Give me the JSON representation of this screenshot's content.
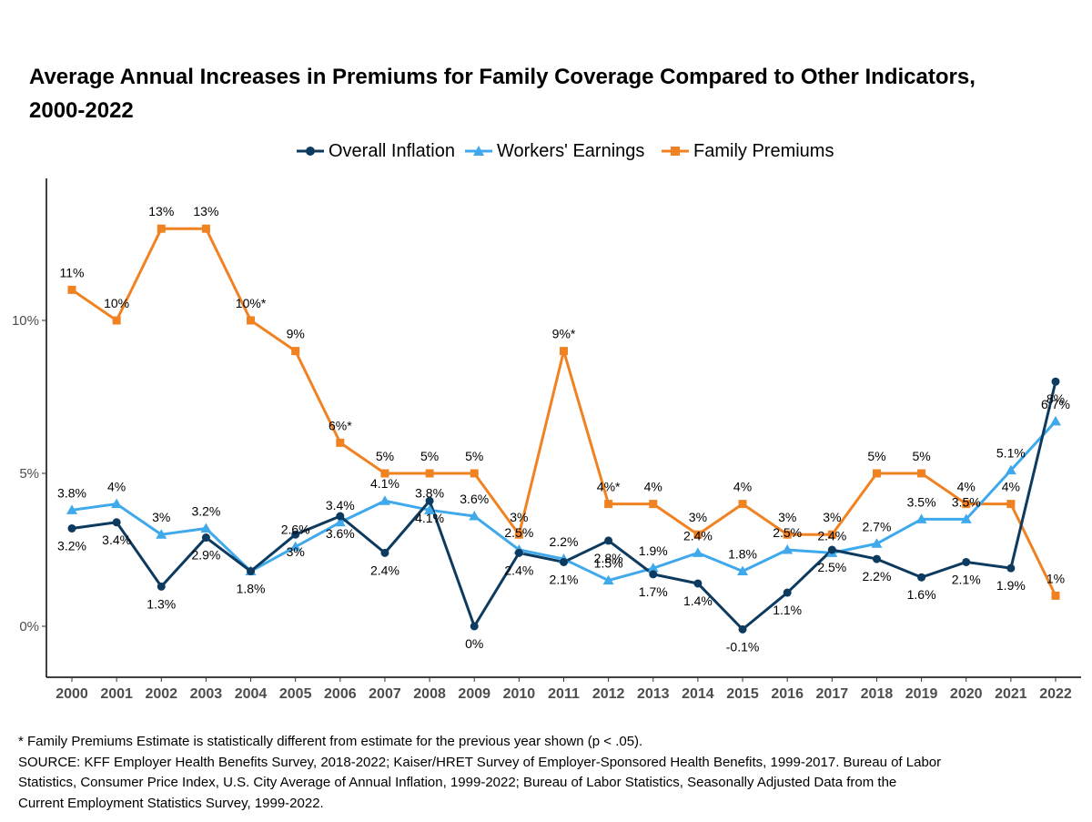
{
  "title_line1": "Average Annual Increases in Premiums for Family Coverage Compared to Other Indicators,",
  "title_line2": "2000-2022",
  "legend": [
    {
      "name": "Overall Inflation",
      "color": "#0d3a5f",
      "marker": "circle"
    },
    {
      "name": "Workers' Earnings",
      "color": "#3fa9ec",
      "marker": "triangle"
    },
    {
      "name": "Family Premiums",
      "color": "#f08222",
      "marker": "square"
    }
  ],
  "chart_data": {
    "type": "line",
    "title": "Average Annual Increases in Premiums for Family Coverage Compared to Other Indicators, 2000-2022",
    "x": [
      "2000",
      "2001",
      "2002",
      "2003",
      "2004",
      "2005",
      "2006",
      "2007",
      "2008",
      "2009",
      "2010",
      "2011",
      "2012",
      "2013",
      "2014",
      "2015",
      "2016",
      "2017",
      "2018",
      "2019",
      "2020",
      "2021",
      "2022"
    ],
    "ylim": [
      -1.7,
      13.9
    ],
    "yticks": [
      0,
      5,
      10
    ],
    "ytick_labels": [
      "0%",
      "5%",
      "10%"
    ],
    "grid": false,
    "legend_position": "top",
    "series": [
      {
        "name": "Overall Inflation",
        "color": "#0d3a5f",
        "marker": "circle",
        "label_position": "below",
        "values": [
          3.2,
          3.4,
          1.3,
          2.9,
          1.8,
          3.0,
          3.6,
          2.4,
          4.1,
          0,
          2.4,
          2.1,
          2.8,
          1.7,
          1.4,
          -0.1,
          1.1,
          2.5,
          2.2,
          1.6,
          2.1,
          1.9,
          8.0
        ],
        "labels": [
          "3.2%",
          "3.4%",
          "1.3%",
          "2.9%",
          "1.8%",
          "3%",
          "3.6%",
          "2.4%",
          "4.1%",
          "0%",
          "2.4%",
          "2.1%",
          "2.8%",
          "1.7%",
          "1.4%",
          "-0.1%",
          "1.1%",
          "2.5%",
          "2.2%",
          "1.6%",
          "2.1%",
          "1.9%",
          "8%"
        ]
      },
      {
        "name": "Workers' Earnings",
        "color": "#3fa9ec",
        "marker": "triangle",
        "label_position": "above",
        "values": [
          3.8,
          4.0,
          3.0,
          3.2,
          1.8,
          2.6,
          3.4,
          4.1,
          3.8,
          3.6,
          2.5,
          2.2,
          1.5,
          1.9,
          2.4,
          1.8,
          2.5,
          2.4,
          2.7,
          3.5,
          3.5,
          5.1,
          6.7
        ],
        "labels": [
          "3.8%",
          "4%",
          "3%",
          "3.2%",
          "",
          "2.6%",
          "3.4%",
          "4.1%",
          "3.8%",
          "3.6%",
          "2.5%",
          "2.2%",
          "1.5%",
          "1.9%",
          "2.4%",
          "1.8%",
          "2.5%",
          "2.4%",
          "2.7%",
          "3.5%",
          "3.5%",
          "5.1%",
          "6.7%"
        ]
      },
      {
        "name": "Family Premiums",
        "color": "#f08222",
        "marker": "square",
        "label_position": "above",
        "values": [
          11,
          10,
          13,
          13,
          10,
          9,
          6,
          5,
          5,
          5,
          3,
          9,
          4,
          4,
          3,
          4,
          3,
          3,
          5,
          5,
          4,
          4,
          1
        ],
        "labels": [
          "11%",
          "10%",
          "13%",
          "13%",
          "10%*",
          "9%",
          "6%*",
          "5%",
          "5%",
          "5%",
          "3%",
          "9%*",
          "4%*",
          "4%",
          "3%",
          "4%",
          "3%",
          "3%",
          "5%",
          "5%",
          "4%",
          "4%",
          "1%"
        ]
      }
    ]
  },
  "footnote": {
    "line1": "* Family Premiums Estimate is statistically different from estimate for the previous year shown (p < .05).",
    "line2": "SOURCE: KFF Employer Health Benefits Survey, 2018-2022; Kaiser/HRET Survey of Employer-Sponsored Health Benefits, 1999-2017. Bureau of Labor",
    "line3": "Statistics, Consumer Price Index, U.S. City Average of Annual Inflation, 1999-2022; Bureau of Labor Statistics, Seasonally Adjusted Data from the",
    "line4": "Current Employment Statistics Survey, 1999-2022."
  }
}
